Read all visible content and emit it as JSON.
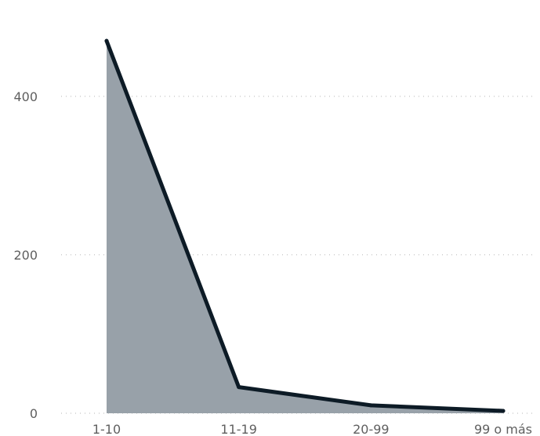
{
  "chart_data": {
    "type": "area",
    "categories": [
      "1-10",
      "11-19",
      "20-99",
      "99 o más"
    ],
    "values": [
      470,
      33,
      10,
      3
    ],
    "ylim": [
      0,
      480
    ],
    "yticks": [
      0,
      200,
      400
    ],
    "grid": true,
    "colors": {
      "area_fill": "#98a1a9",
      "line": "#0d1b26",
      "grid": "#b5b5b5",
      "tick_text": "#5f5f5f"
    }
  }
}
